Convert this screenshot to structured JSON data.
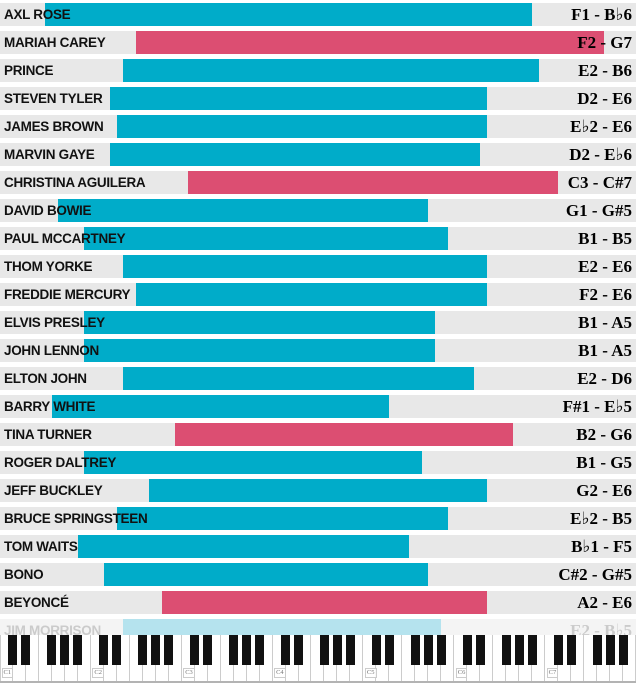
{
  "colors": {
    "teal": "#00ACC9",
    "pink": "#DC4E72",
    "muted_bar": "#B5E3EE",
    "row_bg": "#E8E8E8",
    "muted_row_bg": "#F4F4F4",
    "name_text": "#111111",
    "note_text": "#000000",
    "muted_text": "#CBCBCB"
  },
  "chart_data": {
    "type": "bar",
    "subtype": "horizontal_range_bars",
    "x_axis": {
      "type": "piano_pitch",
      "range": [
        "C1",
        "B7"
      ],
      "octave_labels": [
        "C1",
        "C2",
        "C3",
        "C4",
        "C5",
        "C6",
        "C7"
      ]
    },
    "legend": "none",
    "grid": "off",
    "singers": [
      {
        "name": "AXL ROSE",
        "low": "F1",
        "high": "B♭6",
        "range_label": "F1 - B♭6",
        "bar": "teal"
      },
      {
        "name": "MARIAH CAREY",
        "low": "F2",
        "high": "G7",
        "range_label": "F2 - G7",
        "bar": "pink"
      },
      {
        "name": "PRINCE",
        "low": "E2",
        "high": "B6",
        "range_label": "E2 - B6",
        "bar": "teal"
      },
      {
        "name": "STEVEN TYLER",
        "low": "D2",
        "high": "E6",
        "range_label": "D2 - E6",
        "bar": "teal"
      },
      {
        "name": "JAMES BROWN",
        "low": "E♭2",
        "high": "E6",
        "range_label": "E♭2 - E6",
        "bar": "teal"
      },
      {
        "name": "MARVIN GAYE",
        "low": "D2",
        "high": "E♭6",
        "range_label": "D2 - E♭6",
        "bar": "teal"
      },
      {
        "name": "CHRISTINA AGUILERA",
        "low": "C3",
        "high": "C#7",
        "range_label": "C3 - C#7",
        "bar": "pink"
      },
      {
        "name": "DAVID BOWIE",
        "low": "G1",
        "high": "G#5",
        "range_label": "G1 - G#5",
        "bar": "teal"
      },
      {
        "name": "PAUL MCCARTNEY",
        "low": "B1",
        "high": "B5",
        "range_label": "B1 - B5",
        "bar": "teal"
      },
      {
        "name": "THOM YORKE",
        "low": "E2",
        "high": "E6",
        "range_label": "E2 - E6",
        "bar": "teal"
      },
      {
        "name": "FREDDIE MERCURY",
        "low": "F2",
        "high": "E6",
        "range_label": "F2 - E6",
        "bar": "teal"
      },
      {
        "name": "ELVIS PRESLEY",
        "low": "B1",
        "high": "A5",
        "range_label": "B1 - A5",
        "bar": "teal"
      },
      {
        "name": "JOHN LENNON",
        "low": "B1",
        "high": "A5",
        "range_label": "B1 - A5",
        "bar": "teal"
      },
      {
        "name": "ELTON JOHN",
        "low": "E2",
        "high": "D6",
        "range_label": "E2 - D6",
        "bar": "teal"
      },
      {
        "name": "BARRY WHITE",
        "low": "F#1",
        "high": "E♭5",
        "range_label": "F#1 - E♭5",
        "bar": "teal"
      },
      {
        "name": "TINA TURNER",
        "low": "B2",
        "high": "G6",
        "range_label": "B2 - G6",
        "bar": "pink"
      },
      {
        "name": "ROGER DALTREY",
        "low": "B1",
        "high": "G5",
        "range_label": "B1 - G5",
        "bar": "teal"
      },
      {
        "name": "JEFF BUCKLEY",
        "low": "G2",
        "high": "E6",
        "range_label": "G2 - E6",
        "bar": "teal"
      },
      {
        "name": "BRUCE SPRINGSTEEN",
        "low": "E♭2",
        "high": "B5",
        "range_label": "E♭2 - B5",
        "bar": "teal"
      },
      {
        "name": "TOM WAITS",
        "low": "B♭1",
        "high": "F5",
        "range_label": "B♭1 - F5",
        "bar": "teal"
      },
      {
        "name": "BONO",
        "low": "C#2",
        "high": "G#5",
        "range_label": "C#2 - G#5",
        "bar": "teal"
      },
      {
        "name": "BEYONCÉ",
        "low": "A2",
        "high": "E6",
        "range_label": "A2 - E6",
        "bar": "pink"
      },
      {
        "name": "JIM MORRISON",
        "low": "E2",
        "high": "B♭5",
        "range_label": "E2 - B♭5",
        "bar": "muted"
      }
    ]
  },
  "keyboard": {
    "octaves": 7,
    "white_keys": 49,
    "octave_labels": [
      "C1",
      "C2",
      "C3",
      "C4",
      "C5",
      "C6",
      "C7"
    ]
  }
}
